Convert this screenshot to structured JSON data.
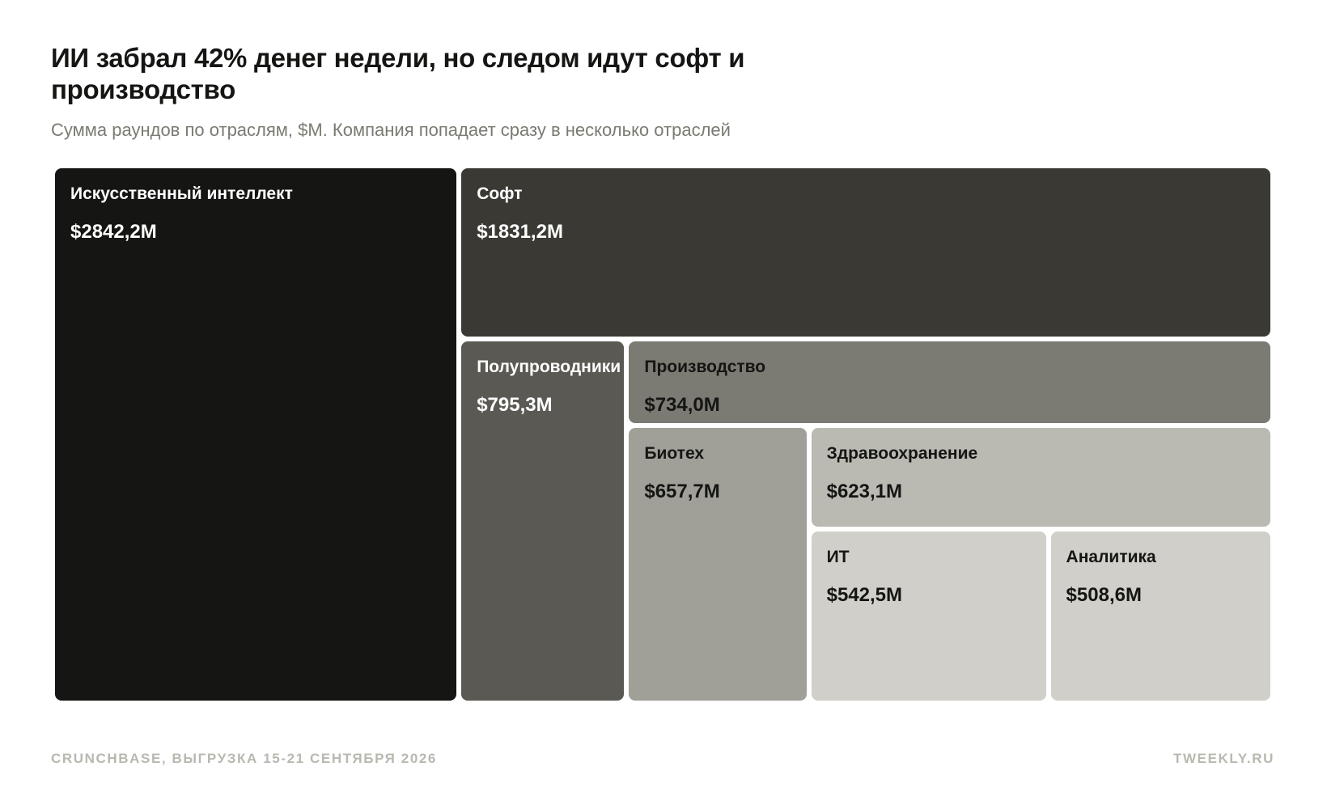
{
  "header": {
    "title": "ИИ забрал 42% денег недели, но следом идут софт и производство",
    "subtitle": "Сумма раундов по отраслям, $M. Компания попадает сразу в несколько отраслей"
  },
  "footer": {
    "source": "CRUNCHBASE, ВЫГРУЗКА 15-21 СЕНТЯБРЯ 2026",
    "brand": "TWEEKLY.RU"
  },
  "chart_data": {
    "type": "treemap",
    "unit": "$M",
    "items": [
      {
        "name": "Искусственный интеллект",
        "value": 2842.2,
        "value_label": "$2842,2M",
        "color": "#151513",
        "text_color": "#ffffff"
      },
      {
        "name": "Софт",
        "value": 1831.2,
        "value_label": "$1831,2M",
        "color": "#3a3934",
        "text_color": "#ffffff"
      },
      {
        "name": "Полупроводники",
        "value": 795.3,
        "value_label": "$795,3M",
        "color": "#5a5953",
        "text_color": "#ffffff"
      },
      {
        "name": "Производство",
        "value": 734.0,
        "value_label": "$734,0M",
        "color": "#7b7a73",
        "text_color": "#151513"
      },
      {
        "name": "Биотех",
        "value": 657.7,
        "value_label": "$657,7M",
        "color": "#a09f98",
        "text_color": "#151513"
      },
      {
        "name": "Здравоохранение",
        "value": 623.1,
        "value_label": "$623,1M",
        "color": "#bab9b2",
        "text_color": "#151513"
      },
      {
        "name": "ИТ",
        "value": 542.5,
        "value_label": "$542,5M",
        "color": "#d0cfc9",
        "text_color": "#151513"
      },
      {
        "name": "Аналитика",
        "value": 508.6,
        "value_label": "$508,6M",
        "color": "#d0cfc9",
        "text_color": "#151513"
      }
    ]
  }
}
